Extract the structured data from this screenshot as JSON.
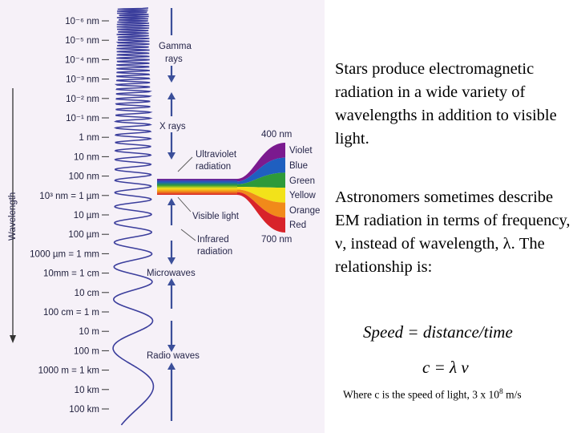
{
  "figure": {
    "axis_label": "Wavelength",
    "ticks": [
      "10⁻⁶ nm",
      "10⁻⁵ nm",
      "10⁻⁴ nm",
      "10⁻³ nm",
      "10⁻² nm",
      "10⁻¹ nm",
      "1 nm",
      "10 nm",
      "100 nm",
      "10³ nm = 1 µm",
      "10 µm",
      "100 µm",
      "1000 µm = 1 mm",
      "10mm = 1 cm",
      "10 cm",
      "100 cm = 1 m",
      "10 m",
      "100 m",
      "1000 m = 1 km",
      "10 km",
      "100 km"
    ],
    "bands": {
      "gamma": [
        "Gamma",
        "rays"
      ],
      "xrays": "X rays",
      "uv": [
        "Ultraviolet",
        "radiation"
      ],
      "visible": "Visible light",
      "ir": [
        "Infrared",
        "radiation"
      ],
      "microwaves": "Microwaves",
      "radio": "Radio waves"
    },
    "spectrum_top": "400 nm",
    "spectrum_bottom": "700 nm",
    "spectrum_colors": [
      "Violet",
      "Blue",
      "Green",
      "Yellow",
      "Orange",
      "Red"
    ]
  },
  "text": {
    "para1": "Stars produce electromagnetic radiation in a wide variety of wavelengths in addition to visible light.",
    "para2": "Astronomers sometimes describe EM radiation in terms of frequency, ν, instead of wavelength, λ. The relationship is:",
    "eq1": "Speed = distance/time",
    "eq2": "c = λ ν",
    "footnote_main": "Where c is the speed of light, 3 x 10",
    "footnote_exp": "8",
    "footnote_unit": " m/s"
  }
}
